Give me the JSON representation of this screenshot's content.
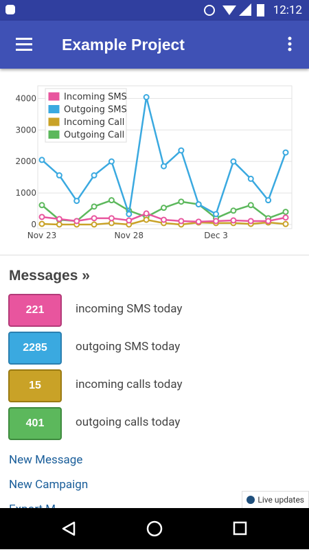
{
  "status": {
    "time": "12:12"
  },
  "appbar": {
    "title": "Example Project"
  },
  "chart_data": {
    "type": "line",
    "categories": [
      "Nov 23",
      null,
      null,
      null,
      null,
      "Nov 28",
      null,
      null,
      null,
      null,
      "Dec 3",
      null,
      null,
      null,
      null
    ],
    "series": [
      {
        "name": "Incoming SMS",
        "color": "#e8559e",
        "values": [
          240,
          175,
          110,
          200,
          200,
          130,
          350,
          150,
          110,
          90,
          110,
          130,
          110,
          110,
          221
        ]
      },
      {
        "name": "Outgoing SMS",
        "color": "#3aa9e0",
        "values": [
          2050,
          1560,
          750,
          1560,
          2000,
          330,
          4040,
          1850,
          2350,
          640,
          330,
          2000,
          1450,
          770,
          2285
        ]
      },
      {
        "name": "Incoming Call",
        "color": "#c9a227",
        "values": [
          20,
          0,
          0,
          0,
          45,
          0,
          150,
          45,
          0,
          65,
          45,
          45,
          20,
          65,
          15
        ]
      },
      {
        "name": "Outgoing Call",
        "color": "#5cb85c",
        "values": [
          615,
          150,
          110,
          570,
          770,
          440,
          240,
          530,
          725,
          640,
          200,
          440,
          615,
          200,
          401
        ]
      }
    ],
    "ylim": [
      0,
      4400
    ],
    "yticks": [
      0,
      1000,
      2000,
      3000,
      4000
    ],
    "grid": true,
    "legend": "top-left"
  },
  "messages": {
    "heading": "Messages »",
    "stats": [
      {
        "value": 221,
        "label": "incoming SMS today"
      },
      {
        "value": 2285,
        "label": "outgoing SMS today"
      },
      {
        "value": 15,
        "label": "incoming calls today"
      },
      {
        "value": 401,
        "label": "outgoing calls today"
      }
    ]
  },
  "links": [
    "New Message",
    "New Campaign",
    "Export M"
  ],
  "badge": "Live updates"
}
